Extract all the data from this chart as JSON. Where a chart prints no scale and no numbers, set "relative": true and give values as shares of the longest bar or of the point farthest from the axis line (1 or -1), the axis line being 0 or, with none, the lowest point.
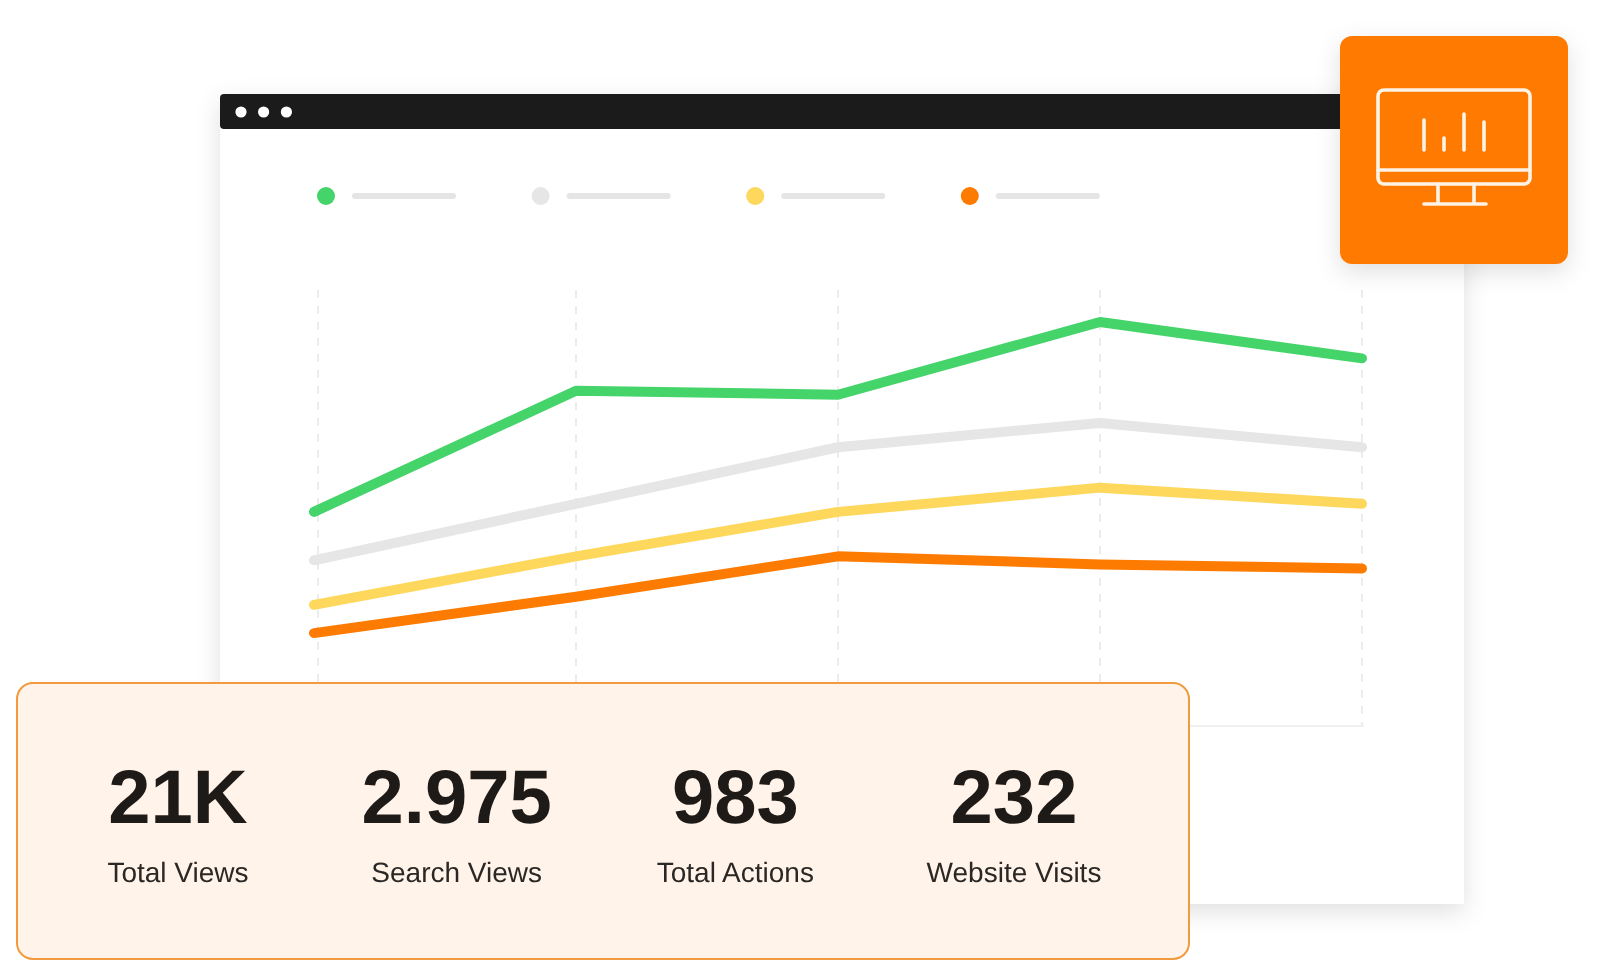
{
  "chart_data": [
    {
      "type": "line",
      "relative": true,
      "categories": [
        null,
        null,
        null,
        null,
        null
      ],
      "grid": "x",
      "line_style": "solid",
      "series": [
        {
          "color": "#44d46a",
          "values": [
            0.53,
            0.83,
            0.82,
            1.0,
            0.91
          ]
        },
        {
          "color": "#e6e6e6",
          "values": [
            0.41,
            0.55,
            0.69,
            0.75,
            0.69
          ]
        },
        {
          "color": "#fdd85d",
          "values": [
            0.3,
            0.42,
            0.53,
            0.59,
            0.55
          ]
        },
        {
          "color": "#fd7b00",
          "values": [
            0.23,
            0.32,
            0.42,
            0.4,
            0.39
          ]
        }
      ]
    },
    {
      "type": "other",
      "categories": [
        "Total Views",
        "Search Views",
        "Total Actions",
        "Website Visits"
      ],
      "value_labels": [
        "21K",
        "2.975",
        "983",
        "232"
      ]
    }
  ]
}
